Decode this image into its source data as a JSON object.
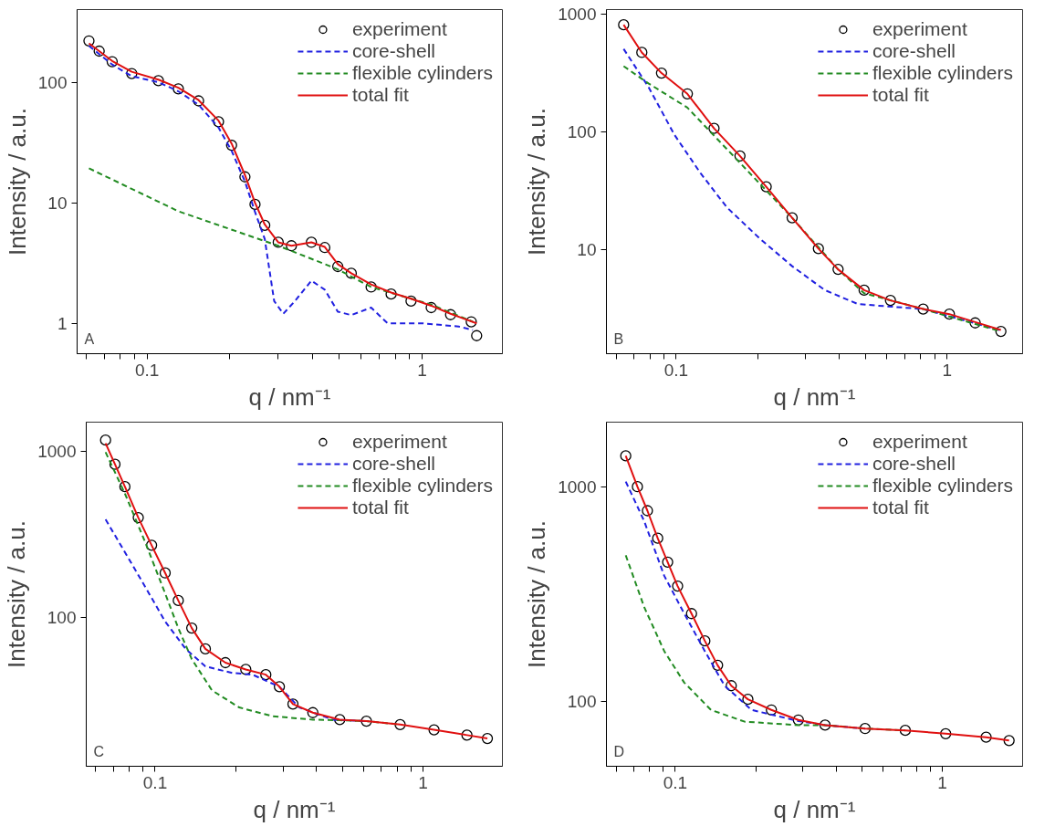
{
  "chart_data": [
    {
      "type": "line",
      "log": "xy",
      "grid": false,
      "legend": "top right",
      "xlabel": "q / nm⁻¹",
      "ylabel": "Intensity / a.u.",
      "annotations": [
        "A"
      ],
      "xlim": [
        0.0557,
        1.96
      ],
      "ylim": [
        0.56,
        400
      ],
      "xticks": [
        {
          "value": 0.06,
          "label": null
        },
        {
          "value": 0.07,
          "label": null
        },
        {
          "value": 0.08,
          "label": null
        },
        {
          "value": 0.09,
          "label": null
        },
        0.1,
        {
          "value": 0.2,
          "label": null
        },
        {
          "value": 0.3,
          "label": null
        },
        {
          "value": 0.4,
          "label": null
        },
        {
          "value": 0.5,
          "label": null
        },
        {
          "value": 0.6,
          "label": null
        },
        {
          "value": 0.7,
          "label": null
        },
        {
          "value": 0.8,
          "label": null
        },
        {
          "value": 0.9,
          "label": null
        },
        1
      ],
      "yticks": [
        1,
        10,
        100
      ],
      "series": [
        {
          "name": "experiment",
          "type": "scatter",
          "marker": "circle",
          "color": "#000000",
          "x": [
            0.0615,
            0.067,
            0.0747,
            0.088,
            0.11,
            0.13,
            0.154,
            0.182,
            0.203,
            0.227,
            0.247,
            0.268,
            0.3,
            0.335,
            0.396,
            0.443,
            0.494,
            0.553,
            0.653,
            0.772,
            0.912,
            1.08,
            1.27,
            1.51,
            1.58
          ],
          "values": [
            220,
            181,
            148,
            118,
            103,
            88,
            70,
            47,
            30,
            16.4,
            9.7,
            6.5,
            4.7,
            4.4,
            4.7,
            4.25,
            2.96,
            2.6,
            2.0,
            1.75,
            1.53,
            1.35,
            1.18,
            1.03,
            0.79
          ]
        },
        {
          "name": "core-shell",
          "line_style": "dashed",
          "color": "#2020e0",
          "x": [
            0.0615,
            0.0747,
            0.088,
            0.11,
            0.13,
            0.154,
            0.182,
            0.203,
            0.227,
            0.247,
            0.268,
            0.29,
            0.313,
            0.345,
            0.396,
            0.443,
            0.494,
            0.553,
            0.653,
            0.75,
            1.01,
            1.36,
            1.53
          ],
          "values": [
            200,
            140,
            112,
            100,
            84,
            65,
            42,
            27,
            15,
            8.4,
            5.0,
            1.53,
            1.2,
            1.53,
            2.26,
            1.9,
            1.25,
            1.17,
            1.35,
            1.0,
            1.0,
            0.94,
            0.88
          ]
        },
        {
          "name": "flexible cylinders",
          "line_style": "dashed",
          "color": "#228b22",
          "x": [
            0.0615,
            0.13,
            0.3,
            0.443,
            0.494,
            0.653,
            1.08,
            1.53
          ],
          "values": [
            19.3,
            8.5,
            4.4,
            3.1,
            2.8,
            2.0,
            1.43,
            1.03
          ]
        },
        {
          "name": "total fit",
          "line_style": "solid",
          "color": "#e01010",
          "x": [
            0.0615,
            0.0747,
            0.088,
            0.11,
            0.13,
            0.154,
            0.182,
            0.203,
            0.227,
            0.247,
            0.268,
            0.3,
            0.335,
            0.396,
            0.443,
            0.494,
            0.553,
            0.653,
            0.772,
            0.912,
            1.08,
            1.27,
            1.58
          ],
          "values": [
            210,
            150,
            122,
            105,
            90,
            71,
            48,
            31,
            17,
            10,
            6.6,
            4.7,
            4.4,
            4.7,
            4.3,
            3.1,
            2.6,
            2.1,
            1.8,
            1.6,
            1.4,
            1.2,
            1.0
          ]
        }
      ]
    },
    {
      "type": "line",
      "log": "xy",
      "grid": false,
      "legend": "top right",
      "xlabel": "q / nm⁻¹",
      "ylabel": "Intensity / a.u.",
      "annotations": [
        "B"
      ],
      "xlim": [
        0.0553,
        1.9
      ],
      "ylim": [
        1.32,
        1100
      ],
      "xticks": [
        {
          "value": 0.06,
          "label": null
        },
        {
          "value": 0.07,
          "label": null
        },
        {
          "value": 0.08,
          "label": null
        },
        {
          "value": 0.09,
          "label": null
        },
        0.1,
        {
          "value": 0.2,
          "label": null
        },
        {
          "value": 0.3,
          "label": null
        },
        {
          "value": 0.4,
          "label": null
        },
        {
          "value": 0.5,
          "label": null
        },
        {
          "value": 0.6,
          "label": null
        },
        {
          "value": 0.7,
          "label": null
        },
        {
          "value": 0.8,
          "label": null
        },
        {
          "value": 0.9,
          "label": null
        },
        1
      ],
      "yticks": [
        10,
        100,
        1000
      ],
      "series": [
        {
          "name": "experiment",
          "type": "scatter",
          "marker": "circle",
          "color": "#000000",
          "x": [
            0.064,
            0.0747,
            0.0883,
            0.11,
            0.138,
            0.172,
            0.215,
            0.268,
            0.335,
            0.396,
            0.494,
            0.618,
            0.816,
            1.02,
            1.27,
            1.58
          ],
          "values": [
            817,
            476,
            318,
            212,
            108,
            63,
            34.5,
            18.8,
            10.3,
            6.86,
            4.57,
            3.74,
            3.16,
            2.86,
            2.41,
            2.04
          ]
        },
        {
          "name": "core-shell",
          "line_style": "dashed",
          "color": "#2020e0",
          "x": [
            0.064,
            0.079,
            0.0986,
            0.123,
            0.154,
            0.203,
            0.268,
            0.354,
            0.466,
            0.55,
            0.816,
            1.58
          ],
          "values": [
            510,
            243,
            95,
            45,
            23,
            12.6,
            7.3,
            4.57,
            3.5,
            3.38,
            3.16,
            2.08
          ]
        },
        {
          "name": "flexible cylinders",
          "line_style": "dashed",
          "color": "#228b22",
          "x": [
            0.064,
            0.079,
            0.11,
            0.172,
            0.268,
            0.396,
            0.494,
            0.816,
            1.58
          ],
          "values": [
            364,
            260,
            162,
            55,
            18.8,
            6.86,
            4.3,
            3.16,
            2.04
          ]
        },
        {
          "name": "total fit",
          "line_style": "solid",
          "color": "#e01010",
          "x": [
            0.064,
            0.0747,
            0.0883,
            0.11,
            0.138,
            0.172,
            0.215,
            0.268,
            0.335,
            0.396,
            0.494,
            0.618,
            0.816,
            1.02,
            1.27,
            1.58
          ],
          "values": [
            817,
            476,
            318,
            212,
            108,
            63,
            34.5,
            18.8,
            10.3,
            6.86,
            4.57,
            3.74,
            3.16,
            2.86,
            2.45,
            2.1
          ]
        }
      ]
    },
    {
      "type": "line",
      "log": "xy",
      "grid": false,
      "legend": "top right",
      "xlabel": "q / nm⁻¹",
      "ylabel": "Intensity / a.u.",
      "annotations": [
        "C"
      ],
      "xlim": [
        0.0553,
        1.98
      ],
      "ylim": [
        12.8,
        1500
      ],
      "xticks": [
        {
          "value": 0.06,
          "label": null
        },
        {
          "value": 0.07,
          "label": null
        },
        {
          "value": 0.08,
          "label": null
        },
        {
          "value": 0.09,
          "label": null
        },
        0.1,
        {
          "value": 0.2,
          "label": null
        },
        {
          "value": 0.3,
          "label": null
        },
        {
          "value": 0.4,
          "label": null
        },
        {
          "value": 0.5,
          "label": null
        },
        {
          "value": 0.6,
          "label": null
        },
        {
          "value": 0.7,
          "label": null
        },
        {
          "value": 0.8,
          "label": null
        },
        {
          "value": 0.9,
          "label": null
        },
        1
      ],
      "yticks": [
        100,
        1000
      ],
      "series": [
        {
          "name": "experiment",
          "type": "scatter",
          "marker": "circle",
          "color": "#000000",
          "x": [
            0.0653,
            0.0708,
            0.0771,
            0.0865,
            0.097,
            0.109,
            0.122,
            0.137,
            0.154,
            0.183,
            0.218,
            0.259,
            0.291,
            0.327,
            0.388,
            0.489,
            0.615,
            0.822,
            1.1,
            1.46,
            1.74
          ],
          "values": [
            1170,
            837,
            614,
            400,
            273,
            186,
            127,
            86.7,
            65,
            53.7,
            48.9,
            45.5,
            38.5,
            30.3,
            26.9,
            24.4,
            23.9,
            22.8,
            21.2,
            19.7,
            18.8
          ]
        },
        {
          "name": "core-shell",
          "line_style": "dashed",
          "color": "#2020e0",
          "x": [
            0.0653,
            0.0771,
            0.0917,
            0.109,
            0.13,
            0.154,
            0.194,
            0.231,
            0.291,
            0.345,
            0.46,
            0.615
          ],
          "values": [
            390,
            248,
            154,
            95,
            65,
            51,
            46.6,
            45.5,
            38.5,
            28.9,
            24.4,
            23.9
          ]
        },
        {
          "name": "flexible cylinders",
          "line_style": "dashed",
          "color": "#228b22",
          "x": [
            0.0653,
            0.0771,
            0.0917,
            0.109,
            0.122,
            0.137,
            0.163,
            0.206,
            0.274,
            0.388,
            0.489,
            0.615,
            0.822
          ],
          "values": [
            990,
            558,
            286,
            140,
            86.7,
            56.4,
            36.6,
            28.9,
            25.6,
            24.4,
            24.2,
            23.9,
            22.8
          ]
        },
        {
          "name": "total fit",
          "line_style": "solid",
          "color": "#e01010",
          "x": [
            0.0653,
            0.0708,
            0.0771,
            0.0865,
            0.097,
            0.109,
            0.122,
            0.137,
            0.154,
            0.183,
            0.218,
            0.259,
            0.291,
            0.327,
            0.388,
            0.489,
            0.615,
            0.822,
            1.1,
            1.46,
            1.74
          ],
          "values": [
            1120,
            837,
            614,
            400,
            273,
            186,
            127,
            86.7,
            65,
            53.7,
            48.9,
            45.5,
            38.5,
            30.3,
            26.9,
            24.4,
            23.9,
            22.8,
            21.2,
            19.7,
            18.8
          ]
        }
      ]
    },
    {
      "type": "line",
      "log": "xy",
      "grid": false,
      "legend": "top right",
      "xlabel": "q / nm⁻¹",
      "ylabel": "Intensity / a.u.",
      "annotations": [
        "D"
      ],
      "xlim": [
        0.0552,
        2.0
      ],
      "ylim": [
        49.7,
        2000
      ],
      "xticks": [
        {
          "value": 0.06,
          "label": null
        },
        {
          "value": 0.07,
          "label": null
        },
        {
          "value": 0.08,
          "label": null
        },
        {
          "value": 0.09,
          "label": null
        },
        0.1,
        {
          "value": 0.2,
          "label": null
        },
        {
          "value": 0.3,
          "label": null
        },
        {
          "value": 0.4,
          "label": null
        },
        {
          "value": 0.5,
          "label": null
        },
        {
          "value": 0.6,
          "label": null
        },
        {
          "value": 0.7,
          "label": null
        },
        {
          "value": 0.8,
          "label": null
        },
        {
          "value": 0.9,
          "label": null
        },
        1
      ],
      "yticks": [
        100,
        1000
      ],
      "series": [
        {
          "name": "experiment",
          "type": "scatter",
          "marker": "circle",
          "color": "#000000",
          "x": [
            0.0652,
            0.0721,
            0.0786,
            0.0859,
            0.0936,
            0.102,
            0.115,
            0.129,
            0.144,
            0.162,
            0.187,
            0.229,
            0.289,
            0.364,
            0.514,
            0.727,
            1.03,
            1.46,
            1.78
          ],
          "values": [
            1393,
            1000,
            773,
            575,
            445,
            344,
            256,
            191,
            147,
            118,
            102,
            91,
            81.7,
            77.3,
            74.5,
            73.1,
            70.5,
            67.9,
            65.5
          ]
        },
        {
          "name": "core-shell",
          "line_style": "dashed",
          "color": "#2020e0",
          "x": [
            0.0652,
            0.0764,
            0.0909,
            0.108,
            0.129,
            0.153,
            0.193,
            0.289,
            0.364,
            0.514
          ],
          "values": [
            1057,
            692,
            384,
            256,
            171,
            118,
            91,
            80.8,
            77.3,
            74.5
          ]
        },
        {
          "name": "flexible cylinders",
          "line_style": "dashed",
          "color": "#228b22",
          "x": [
            0.0652,
            0.0764,
            0.0909,
            0.108,
            0.136,
            0.182,
            0.289,
            0.364,
            0.514,
            0.727
          ],
          "values": [
            479,
            275,
            171,
            122,
            91,
            80.2,
            77.3,
            77.3,
            74.5,
            73.1
          ]
        },
        {
          "name": "total fit",
          "line_style": "solid",
          "color": "#e01010",
          "x": [
            0.0652,
            0.0721,
            0.0786,
            0.0859,
            0.0936,
            0.102,
            0.115,
            0.129,
            0.144,
            0.162,
            0.187,
            0.229,
            0.289,
            0.364,
            0.514,
            0.727,
            1.03,
            1.46,
            1.78
          ],
          "values": [
            1393,
            1000,
            773,
            575,
            445,
            344,
            256,
            191,
            147,
            118,
            102,
            91,
            81.7,
            77.3,
            74.5,
            73.1,
            70.5,
            67.9,
            65.5
          ]
        }
      ]
    }
  ]
}
